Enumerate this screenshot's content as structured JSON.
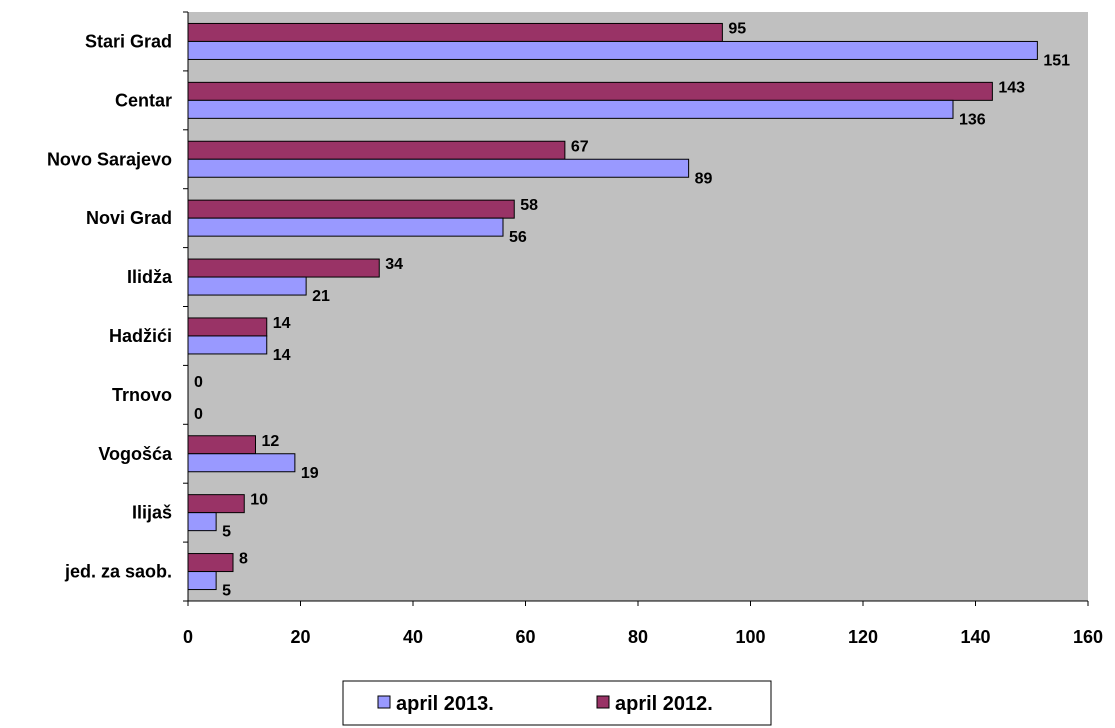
{
  "colors": {
    "plot_background": "#c0c0c0",
    "series_2013": "#9999ff",
    "series_2012": "#993366",
    "bar_outline": "#000000"
  },
  "chart_data": {
    "type": "bar",
    "orientation": "horizontal",
    "categories": [
      "Stari Grad",
      "Centar",
      "Novo Sarajevo",
      "Novi Grad",
      "Ilidža",
      "Hadžići",
      "Trnovo",
      "Vogošća",
      "Ilijaš",
      "jed. za saob."
    ],
    "series": [
      {
        "name": "april 2013.",
        "values": [
          151,
          136,
          89,
          56,
          21,
          14,
          0,
          19,
          5,
          5
        ]
      },
      {
        "name": "april 2012.",
        "values": [
          95,
          143,
          67,
          58,
          34,
          14,
          0,
          12,
          10,
          8
        ]
      }
    ],
    "xlim": [
      0,
      160
    ],
    "xticks": [
      "0",
      "20",
      "40",
      "60",
      "80",
      "100",
      "120",
      "140",
      "160"
    ],
    "legend_position": "bottom",
    "grid": false
  }
}
